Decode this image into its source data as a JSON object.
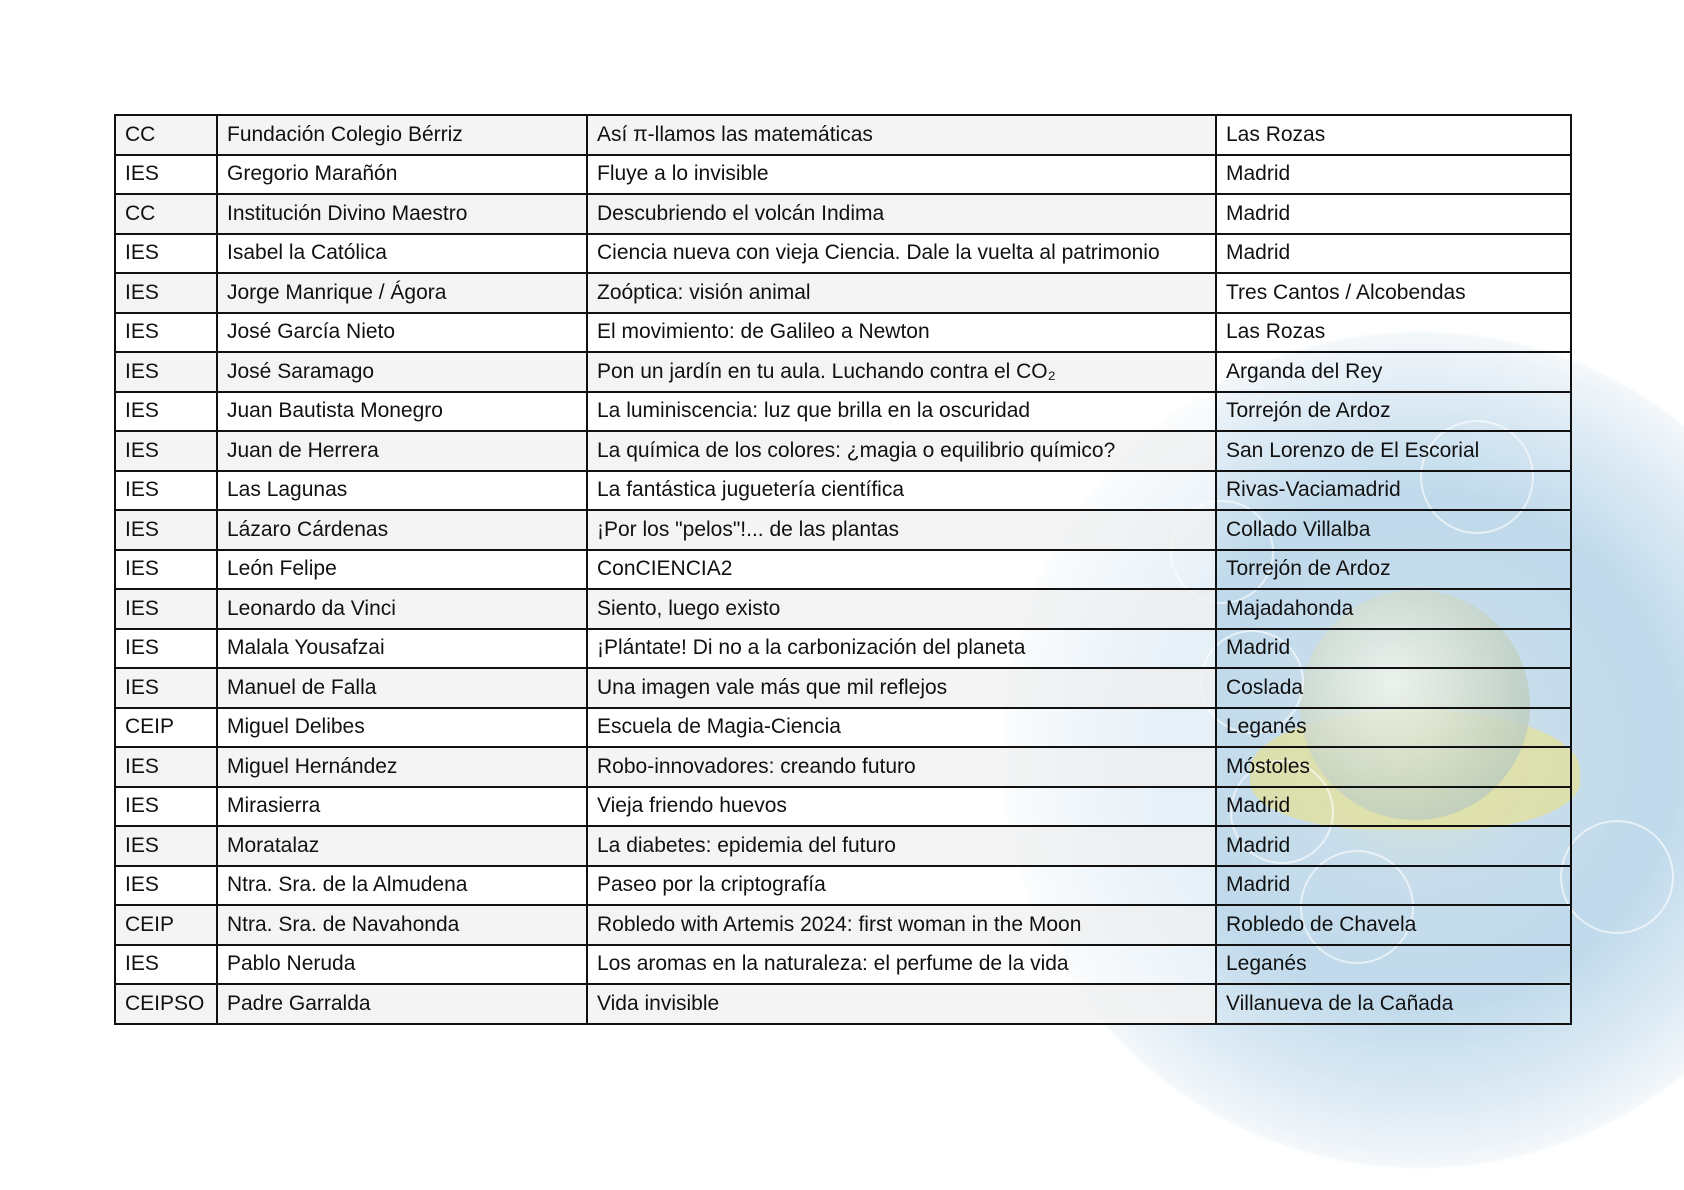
{
  "rows": [
    [
      "CC",
      "Fundación Colegio Bérriz",
      "Así π-llamos las matemáticas",
      "Las Rozas"
    ],
    [
      "IES",
      "Gregorio Marañón",
      "Fluye a lo invisible",
      "Madrid"
    ],
    [
      "CC",
      "Institución Divino Maestro",
      "Descubriendo el volcán Indima",
      "Madrid"
    ],
    [
      "IES",
      "Isabel la Católica",
      "Ciencia nueva con vieja Ciencia. Dale la vuelta al patrimonio",
      "Madrid"
    ],
    [
      "IES",
      "Jorge Manrique / Ágora",
      "Zoóptica: visión animal",
      "Tres Cantos / Alcobendas"
    ],
    [
      "IES",
      "José García Nieto",
      "El movimiento: de Galileo a Newton",
      "Las Rozas"
    ],
    [
      "IES",
      "José Saramago",
      "Pon un jardín en tu aula. Luchando contra el CO₂",
      "Arganda del Rey"
    ],
    [
      "IES",
      "Juan Bautista Monegro",
      "La luminiscencia: luz que brilla en la oscuridad",
      "Torrejón de Ardoz"
    ],
    [
      "IES",
      "Juan de Herrera",
      "La química de los colores: ¿magia o equilibrio químico?",
      "San Lorenzo de El Escorial"
    ],
    [
      "IES",
      "Las Lagunas",
      "La fantástica juguetería científica",
      "Rivas-Vaciamadrid"
    ],
    [
      "IES",
      "Lázaro Cárdenas",
      "¡Por los \"pelos\"!... de las plantas",
      "Collado Villalba"
    ],
    [
      "IES",
      "León Felipe",
      "ConCIENCIA2",
      "Torrejón de Ardoz"
    ],
    [
      "IES",
      "Leonardo da Vinci",
      "Siento, luego existo",
      "Majadahonda"
    ],
    [
      "IES",
      "Malala Yousafzai",
      "¡Plántate! Di no a la carbonización del planeta",
      "Madrid"
    ],
    [
      "IES",
      "Manuel de Falla",
      "Una imagen vale más que mil reflejos",
      "Coslada"
    ],
    [
      "CEIP",
      "Miguel Delibes",
      "Escuela de Magia-Ciencia",
      "Leganés"
    ],
    [
      "IES",
      "Miguel Hernández",
      "Robo-innovadores: creando futuro",
      "Móstoles"
    ],
    [
      "IES",
      "Mirasierra",
      "Vieja friendo huevos",
      "Madrid"
    ],
    [
      "IES",
      "Moratalaz",
      "La diabetes: epidemia del futuro",
      "Madrid"
    ],
    [
      "IES",
      "Ntra. Sra. de la Almudena",
      "Paseo por la criptografía",
      "Madrid"
    ],
    [
      "CEIP",
      "Ntra. Sra. de Navahonda",
      "Robledo with Artemis 2024: first woman in the Moon",
      "Robledo de Chavela"
    ],
    [
      "IES",
      "Pablo Neruda",
      "Los aromas en la naturaleza: el perfume de la vida",
      "Leganés"
    ],
    [
      "CEIPSO",
      "Padre Garralda",
      "Vida invisible",
      "Villanueva de la Cañada"
    ]
  ]
}
